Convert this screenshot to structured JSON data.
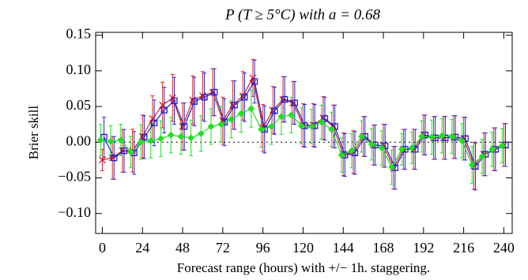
{
  "chart_data": {
    "type": "errorbar_line",
    "title": "P (T ≥ 5°C) with a = 0.68",
    "x_label": "Forecast range (hours) with +/− 1h. staggering.",
    "y_label": "Brier skill",
    "xlim": [
      -4,
      245
    ],
    "ylim": [
      -0.128,
      0.154
    ],
    "xticks": [
      0,
      24,
      48,
      72,
      96,
      120,
      144,
      168,
      192,
      216,
      240
    ],
    "yticks": [
      {
        "value": -0.1,
        "label": "−0.10"
      },
      {
        "value": -0.05,
        "label": "−0.05"
      },
      {
        "value": 0,
        "label": "0.00"
      },
      {
        "value": 0.05,
        "label": "0.05"
      },
      {
        "value": 0.1,
        "label": "0.10"
      },
      {
        "value": 0.15,
        "label": "0.15"
      }
    ],
    "zero_line": true,
    "series": [
      {
        "color": "#e0202a",
        "marker": "x",
        "x": [
          0,
          6,
          12,
          18,
          24,
          30,
          36,
          42,
          48,
          54,
          60,
          66,
          72,
          78,
          84,
          90,
          96,
          102,
          108,
          114,
          120,
          126,
          132,
          138,
          144,
          150,
          156,
          162,
          168,
          174,
          180,
          186,
          192,
          198,
          204,
          210,
          216,
          222,
          228,
          234,
          240
        ],
        "values": [
          -0.025,
          -0.022,
          -0.012,
          -0.012,
          0.008,
          0.033,
          0.052,
          0.062,
          0.022,
          0.059,
          0.065,
          0.07,
          0.03,
          0.052,
          0.065,
          0.09,
          0.02,
          0.045,
          0.06,
          0.055,
          0.024,
          0.024,
          0.034,
          0.022,
          -0.017,
          -0.014,
          0.008,
          -0.004,
          -0.005,
          -0.036,
          -0.01,
          -0.01,
          0.01,
          0.006,
          0.006,
          0.007,
          0.005,
          -0.033,
          -0.017,
          -0.01,
          -0.004
        ],
        "errors": [
          0.015,
          0.03,
          0.03,
          0.03,
          0.03,
          0.032,
          0.032,
          0.033,
          0.033,
          0.034,
          0.034,
          0.033,
          0.033,
          0.034,
          0.034,
          0.026,
          0.033,
          0.033,
          0.032,
          0.03,
          0.03,
          0.03,
          0.03,
          0.03,
          0.03,
          0.03,
          0.028,
          0.028,
          0.03,
          0.03,
          0.028,
          0.028,
          0.028,
          0.03,
          0.03,
          0.03,
          0.03,
          0.033,
          0.03,
          0.03,
          0.03
        ]
      },
      {
        "color": "#2020d0",
        "marker": "square",
        "x": [
          1,
          7,
          13,
          19,
          25,
          31,
          37,
          43,
          49,
          55,
          61,
          67,
          73,
          79,
          85,
          91,
          97,
          103,
          109,
          115,
          121,
          127,
          133,
          139,
          145,
          151,
          157,
          163,
          169,
          175,
          181,
          187,
          193,
          199,
          205,
          211,
          217,
          223,
          229,
          235,
          241
        ],
        "values": [
          0.007,
          -0.022,
          -0.012,
          -0.015,
          0.007,
          0.027,
          0.045,
          0.058,
          0.022,
          0.057,
          0.063,
          0.07,
          0.028,
          0.052,
          0.063,
          0.085,
          0.018,
          0.044,
          0.06,
          0.055,
          0.023,
          0.023,
          0.033,
          0.022,
          -0.018,
          -0.015,
          0.008,
          -0.004,
          -0.005,
          -0.036,
          -0.01,
          -0.01,
          0.01,
          0.006,
          0.006,
          0.007,
          0.005,
          -0.034,
          -0.017,
          -0.01,
          -0.004
        ],
        "errors": [
          0.028,
          0.03,
          0.03,
          0.03,
          0.03,
          0.032,
          0.032,
          0.033,
          0.033,
          0.034,
          0.034,
          0.033,
          0.033,
          0.034,
          0.034,
          0.03,
          0.033,
          0.033,
          0.032,
          0.03,
          0.03,
          0.03,
          0.03,
          0.03,
          0.03,
          0.03,
          0.028,
          0.028,
          0.03,
          0.03,
          0.028,
          0.028,
          0.028,
          0.03,
          0.03,
          0.03,
          0.03,
          0.033,
          0.03,
          0.03,
          0.03
        ]
      },
      {
        "color": "#20e020",
        "marker": "diamond",
        "x": [
          -1,
          5,
          11,
          17,
          23,
          29,
          35,
          41,
          47,
          53,
          59,
          65,
          71,
          77,
          83,
          89,
          95,
          101,
          107,
          113,
          119,
          125,
          131,
          137,
          143,
          149,
          155,
          161,
          167,
          173,
          179,
          185,
          191,
          197,
          203,
          209,
          215,
          221,
          227,
          233,
          239
        ],
        "values": [
          0.003,
          0.001,
          0.003,
          -0.014,
          0.0,
          0.002,
          0.005,
          0.01,
          0.008,
          0.006,
          0.012,
          0.022,
          0.025,
          0.032,
          0.04,
          0.047,
          0.018,
          0.022,
          0.036,
          0.038,
          0.023,
          0.022,
          0.028,
          0.018,
          -0.018,
          -0.012,
          0.008,
          -0.003,
          -0.008,
          -0.035,
          -0.01,
          -0.008,
          0.008,
          0.007,
          0.009,
          0.008,
          0.002,
          -0.032,
          -0.02,
          -0.01,
          -0.005
        ],
        "errors": [
          0.022,
          0.022,
          0.022,
          0.022,
          0.024,
          0.024,
          0.025,
          0.025,
          0.025,
          0.025,
          0.025,
          0.025,
          0.025,
          0.026,
          0.026,
          0.026,
          0.025,
          0.025,
          0.025,
          0.025,
          0.025,
          0.024,
          0.024,
          0.024,
          0.024,
          0.024,
          0.022,
          0.022,
          0.024,
          0.024,
          0.022,
          0.022,
          0.022,
          0.024,
          0.024,
          0.024,
          0.024,
          0.026,
          0.024,
          0.024,
          0.024
        ]
      }
    ]
  }
}
